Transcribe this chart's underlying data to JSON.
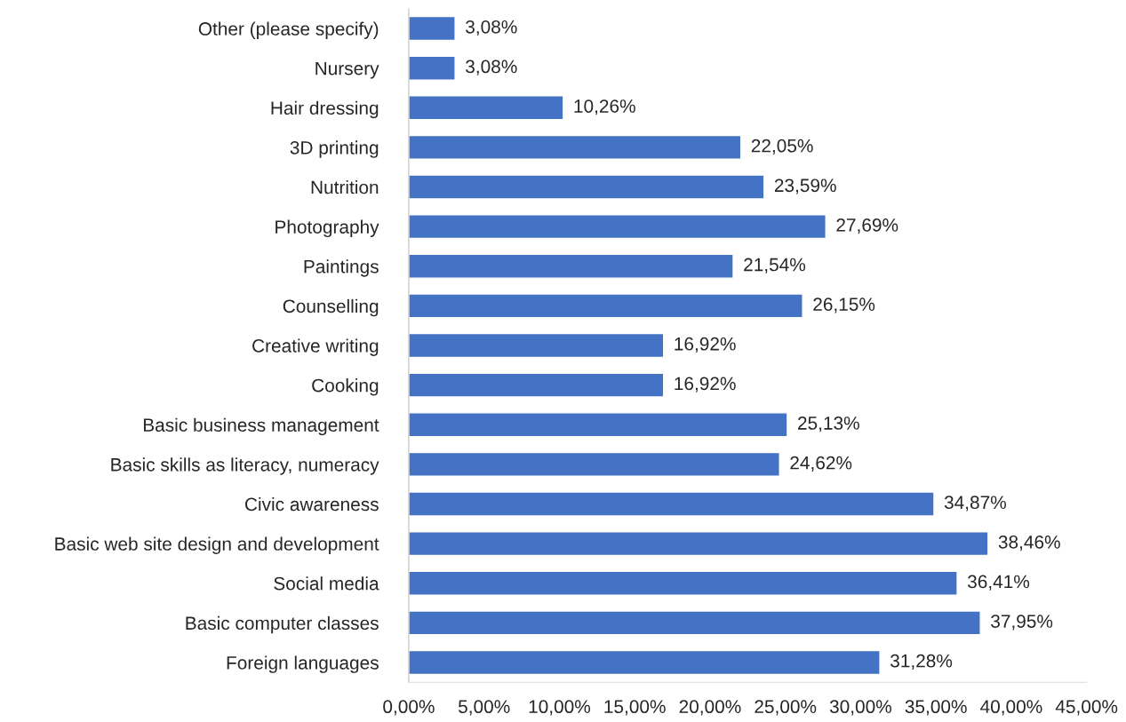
{
  "chart_data": {
    "type": "bar",
    "orientation": "horizontal",
    "categories": [
      "Other (please specify)",
      "Nursery",
      "Hair dressing",
      "3D printing",
      "Nutrition",
      "Photography",
      "Paintings",
      "Counselling",
      "Creative writing",
      "Cooking",
      "Basic business management",
      "Basic skills as literacy, numeracy",
      "Civic awareness",
      "Basic web site design and development",
      "Social media",
      "Basic computer classes",
      "Foreign languages"
    ],
    "values": [
      3.08,
      3.08,
      10.26,
      22.05,
      23.59,
      27.69,
      21.54,
      26.15,
      16.92,
      16.92,
      25.13,
      24.62,
      34.87,
      38.46,
      36.41,
      37.95,
      31.28
    ],
    "value_labels": [
      "3,08%",
      "3,08%",
      "10,26%",
      "22,05%",
      "23,59%",
      "27,69%",
      "21,54%",
      "26,15%",
      "16,92%",
      "16,92%",
      "25,13%",
      "24,62%",
      "34,87%",
      "38,46%",
      "36,41%",
      "37,95%",
      "31,28%"
    ],
    "color": "#4472c4",
    "xlim": [
      0,
      45
    ],
    "xticks": [
      {
        "value": 0,
        "label": "0,00%"
      },
      {
        "value": 5,
        "label": "5,00%"
      },
      {
        "value": 10,
        "label": "10,00%"
      },
      {
        "value": 15,
        "label": "15,00%"
      },
      {
        "value": 20,
        "label": "20,00%"
      },
      {
        "value": 25,
        "label": "25,00%"
      },
      {
        "value": 30,
        "label": "30,00%"
      },
      {
        "value": 35,
        "label": "35,00%"
      },
      {
        "value": 40,
        "label": "40,00%"
      },
      {
        "value": 45,
        "label": "45,00%"
      }
    ],
    "grid": false,
    "legend": false
  }
}
